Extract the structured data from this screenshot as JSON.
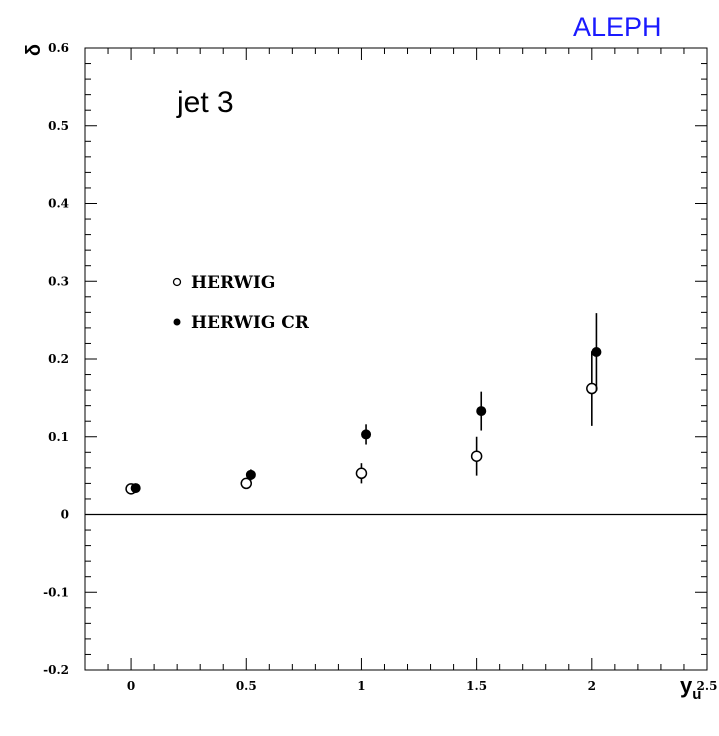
{
  "brand": {
    "text": "ALEPH",
    "color": "#1a1aff"
  },
  "chart_data": {
    "type": "scatter",
    "panel_label": "jet 3",
    "xlabel": "y",
    "xlabel_sub": "u",
    "ylabel": "δ",
    "xlim": [
      -0.2,
      2.5
    ],
    "ylim": [
      -0.2,
      0.6
    ],
    "grid": false,
    "legend_position": "upper-left",
    "x_ticks": [
      {
        "v": 0,
        "label": "0"
      },
      {
        "v": 0.5,
        "label": "0.5"
      },
      {
        "v": 1,
        "label": "1"
      },
      {
        "v": 1.5,
        "label": "1.5"
      },
      {
        "v": 2,
        "label": "2"
      },
      {
        "v": 2.5,
        "label": "2.5"
      }
    ],
    "y_ticks": [
      {
        "v": -0.2,
        "label": "-0.2"
      },
      {
        "v": -0.1,
        "label": "-0.1"
      },
      {
        "v": 0,
        "label": "0"
      },
      {
        "v": 0.1,
        "label": "0.1"
      },
      {
        "v": 0.2,
        "label": "0.2"
      },
      {
        "v": 0.3,
        "label": "0.3"
      },
      {
        "v": 0.4,
        "label": "0.4"
      },
      {
        "v": 0.5,
        "label": "0.5"
      },
      {
        "v": 0.6,
        "label": "0.6"
      }
    ],
    "reference_line_y": 0,
    "series": [
      {
        "name": "HERWIG",
        "marker": "open-circle",
        "points": [
          {
            "x": 0.0,
            "y": 0.033,
            "err": 0.003
          },
          {
            "x": 0.5,
            "y": 0.04,
            "err": 0.007
          },
          {
            "x": 1.0,
            "y": 0.053,
            "err": 0.013
          },
          {
            "x": 1.5,
            "y": 0.075,
            "err": 0.025
          },
          {
            "x": 2.0,
            "y": 0.162,
            "err": 0.048
          }
        ]
      },
      {
        "name": "HERWIG CR",
        "marker": "filled-circle",
        "points": [
          {
            "x": 0.02,
            "y": 0.034,
            "err": 0.003
          },
          {
            "x": 0.52,
            "y": 0.051,
            "err": 0.007
          },
          {
            "x": 1.02,
            "y": 0.103,
            "err": 0.013
          },
          {
            "x": 1.52,
            "y": 0.133,
            "err": 0.025
          },
          {
            "x": 2.02,
            "y": 0.209,
            "err": 0.05
          }
        ]
      }
    ]
  }
}
